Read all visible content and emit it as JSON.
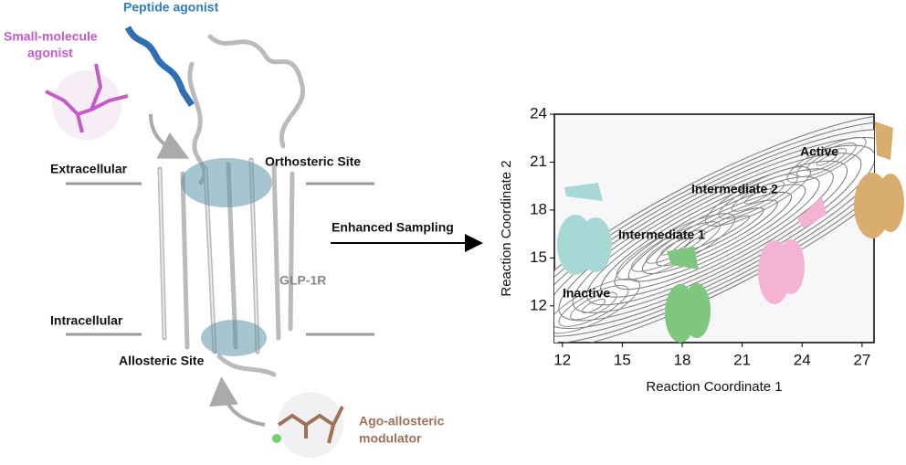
{
  "labels": {
    "peptide_agonist": "Peptide agonist",
    "small_molecule_agonist": [
      "Small-molecule",
      "agonist"
    ],
    "extracellular": "Extracellular",
    "orthosteric_site": "Orthosteric Site",
    "receptor": "GLP-1R",
    "intracellular": "Intracellular",
    "allosteric_site": "Allosteric Site",
    "ago_allosteric_modulator": [
      "Ago-allosteric",
      "modulator"
    ],
    "enhanced_sampling": "Enhanced Sampling"
  },
  "plot": {
    "type": "contour",
    "xlabel": "Reaction Coordinate 1",
    "ylabel": "Reaction Coordinate 2",
    "xlim": [
      11.6,
      27.6
    ],
    "ylim": [
      9.7,
      24
    ],
    "xticks": [
      12,
      15,
      18,
      21,
      24,
      27
    ],
    "yticks": [
      12,
      15,
      18,
      21,
      24
    ],
    "states": [
      "Inactive",
      "Intermediate 1",
      "Intermediate 2",
      "Active"
    ]
  }
}
